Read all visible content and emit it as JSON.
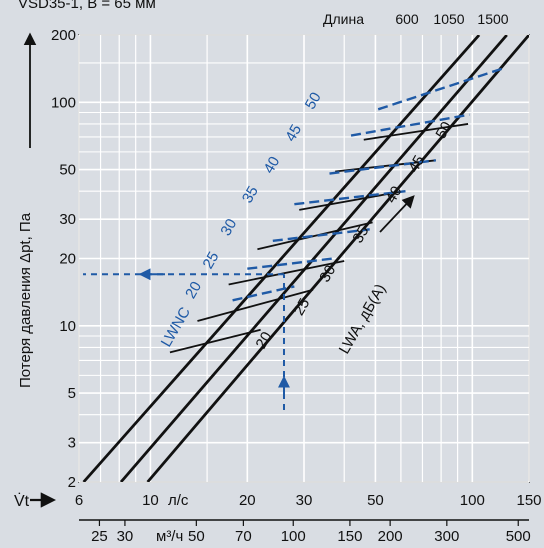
{
  "header": {
    "title_fragment": "VSD35-1, B = 65 мм"
  },
  "colors": {
    "background": "#d9dde3",
    "grid": "#ffffff",
    "line": "#111111",
    "accent_blue": "#1f5aa6"
  },
  "chart_data": {
    "type": "line",
    "title": "",
    "ylabel": "Потеря давления Δpt, Па",
    "xlabel_ls": "л/с",
    "xlabel_m3h": "м³/ч",
    "flow_symbol": "V̇t",
    "length_header": "Длина",
    "length_labels": [
      "600",
      "1050",
      "1500"
    ],
    "x_scale": "log",
    "y_scale": "log",
    "xlim_ls": [
      6,
      150
    ],
    "ylim": [
      2,
      200
    ],
    "grid": true,
    "x_ticks_ls": [
      6,
      10,
      20,
      30,
      50,
      100,
      150
    ],
    "x_tick_labels_ls": [
      "6",
      "10",
      "20",
      "30",
      "50",
      "100",
      "150"
    ],
    "x_ticks_m3h": [
      25,
      30,
      50,
      70,
      100,
      150,
      200,
      300,
      500
    ],
    "x_tick_labels_m3h": [
      "25",
      "30",
      "50",
      "70",
      "100",
      "150",
      "200",
      "300",
      "500"
    ],
    "y_ticks": [
      2,
      3,
      5,
      10,
      20,
      30,
      50,
      100,
      200
    ],
    "y_tick_labels": [
      "2",
      "3",
      "5",
      "10",
      "20",
      "30",
      "50",
      "100",
      "200"
    ],
    "length_series": [
      {
        "name": "600",
        "points": [
          [
            6.2,
            2
          ],
          [
            105,
            200
          ]
        ]
      },
      {
        "name": "1050",
        "points": [
          [
            8.1,
            2
          ],
          [
            128,
            200
          ]
        ]
      },
      {
        "name": "1500",
        "points": [
          [
            9.8,
            2
          ],
          [
            150,
            200
          ]
        ]
      }
    ],
    "lwa_label": "LWA, дБ(А)",
    "lwa_levels": [
      {
        "level": "20",
        "points": [
          [
            11.5,
            7.6
          ],
          [
            22,
            9.6
          ]
        ]
      },
      {
        "level": "25",
        "points": [
          [
            14,
            10.5
          ],
          [
            32,
            14.5
          ]
        ]
      },
      {
        "level": "30",
        "points": [
          [
            17.5,
            15.3
          ],
          [
            40,
            19.5
          ]
        ]
      },
      {
        "level": "35",
        "points": [
          [
            21.5,
            22
          ],
          [
            49,
            29
          ]
        ]
      },
      {
        "level": "40",
        "points": [
          [
            29,
            33
          ],
          [
            61,
            40
          ]
        ]
      },
      {
        "level": "45",
        "points": [
          [
            37.5,
            49
          ],
          [
            77,
            55
          ]
        ]
      },
      {
        "level": "50",
        "points": [
          [
            46,
            68
          ],
          [
            97,
            80
          ]
        ]
      }
    ],
    "lwnc_label": "LWNC",
    "lwnc_levels": [
      {
        "level": "20",
        "points": [
          [
            18,
            13
          ],
          [
            28,
            15
          ]
        ]
      },
      {
        "level": "25",
        "points": [
          [
            20,
            18
          ],
          [
            37,
            20
          ]
        ]
      },
      {
        "level": "30",
        "points": [
          [
            24,
            24
          ],
          [
            48,
            27
          ]
        ]
      },
      {
        "level": "35",
        "points": [
          [
            28,
            35
          ],
          [
            62,
            40
          ]
        ]
      },
      {
        "level": "40",
        "points": [
          [
            36,
            48
          ],
          [
            77,
            55
          ]
        ]
      },
      {
        "level": "45",
        "points": [
          [
            42,
            71
          ],
          [
            98,
            88
          ]
        ]
      },
      {
        "level": "50",
        "points": [
          [
            51,
            93
          ],
          [
            125,
            142
          ]
        ]
      }
    ],
    "lwa_label_positions": [
      {
        "level": "20",
        "x": 22.5,
        "y": 7.8
      },
      {
        "level": "25",
        "x": 29.5,
        "y": 11.0
      },
      {
        "level": "30",
        "x": 35.5,
        "y": 15.5
      },
      {
        "level": "35",
        "x": 45,
        "y": 23.2
      },
      {
        "level": "40",
        "x": 57,
        "y": 35
      },
      {
        "level": "45",
        "x": 67,
        "y": 48
      },
      {
        "level": "50",
        "x": 81.5,
        "y": 68
      }
    ],
    "lwnc_label_positions": [
      {
        "level": "20",
        "x": 13.6,
        "y": 13.1
      },
      {
        "level": "25",
        "x": 15.4,
        "y": 17.8
      },
      {
        "level": "30",
        "x": 17.5,
        "y": 25
      },
      {
        "level": "35",
        "x": 20.4,
        "y": 35
      },
      {
        "level": "40",
        "x": 23.8,
        "y": 47.5
      },
      {
        "level": "45",
        "x": 27.8,
        "y": 66
      },
      {
        "level": "50",
        "x": 32,
        "y": 92
      }
    ],
    "example": {
      "flow_ls": 26,
      "pressure": 17
    }
  }
}
